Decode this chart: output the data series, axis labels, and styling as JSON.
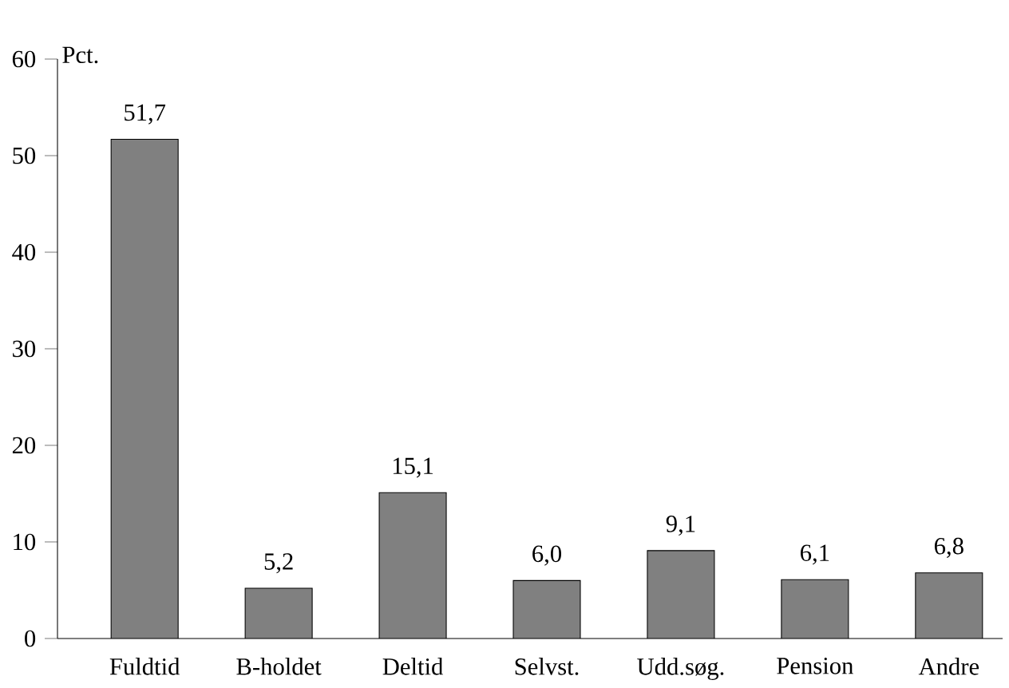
{
  "chart_data": {
    "type": "bar",
    "ylabel": "Pct.",
    "categories": [
      "Fuldtid",
      "B-holdet",
      "Deltid",
      "Selvst.",
      "Udd.søg.",
      "Pension",
      "Andre"
    ],
    "values": [
      51.7,
      5.2,
      15.1,
      6.0,
      9.1,
      6.1,
      6.8
    ],
    "value_labels": [
      "51,7",
      "5,2",
      "15,1",
      "6,0",
      "9,1",
      "6,1",
      "6,8"
    ],
    "color": "#808080",
    "ylim": [
      0,
      60
    ],
    "yticks": [
      0,
      10,
      20,
      30,
      40,
      50,
      60
    ]
  }
}
